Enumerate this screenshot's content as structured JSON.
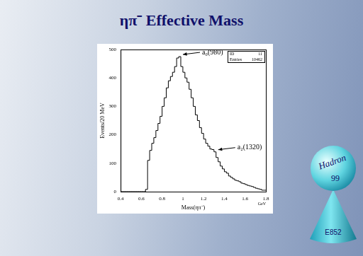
{
  "chart_data": {
    "type": "histogram",
    "title": "ηπ⁻ Effective Mass",
    "x_label": "Mass(ηπ⁻)",
    "x_unit": "GeV",
    "y_label": "Events/20 MeV",
    "bins": [
      0.4,
      0.42,
      0.44,
      0.46,
      0.48,
      0.5,
      0.52,
      0.54,
      0.56,
      0.58,
      0.6,
      0.62,
      0.64,
      0.66,
      0.68,
      0.7,
      0.72,
      0.74,
      0.76,
      0.78,
      0.8,
      0.82,
      0.84,
      0.86,
      0.88,
      0.9,
      0.92,
      0.94,
      0.96,
      0.98,
      1,
      1.02,
      1.04,
      1.06,
      1.08,
      1.1,
      1.12,
      1.14,
      1.16,
      1.18,
      1.2,
      1.22,
      1.24,
      1.26,
      1.28,
      1.3,
      1.32,
      1.34,
      1.36,
      1.38,
      1.4,
      1.42,
      1.44,
      1.46,
      1.48,
      1.5,
      1.52,
      1.54,
      1.56,
      1.58,
      1.6,
      1.62,
      1.64,
      1.66,
      1.68,
      1.7,
      1.72,
      1.74,
      1.76,
      1.78,
      1.8
    ],
    "values": [
      0,
      0,
      0,
      0,
      0,
      0,
      0,
      0,
      0,
      0,
      0,
      0,
      0,
      8,
      110,
      145,
      170,
      190,
      215,
      240,
      265,
      300,
      330,
      365,
      390,
      405,
      420,
      440,
      470,
      475,
      440,
      420,
      400,
      385,
      360,
      330,
      300,
      270,
      250,
      225,
      205,
      185,
      170,
      160,
      150,
      148,
      140,
      120,
      105,
      90,
      80,
      70,
      65,
      55,
      50,
      45,
      40,
      38,
      35,
      30,
      28,
      25,
      22,
      20,
      18,
      15,
      12,
      10,
      8,
      5
    ],
    "color": "#000000",
    "xlim": [
      0.4,
      1.8
    ],
    "xticks": [
      0.4,
      0.6,
      0.8,
      1,
      1.2,
      1.4,
      1.6,
      1.8
    ],
    "ylim": [
      0,
      500
    ],
    "yticks": [
      0,
      100,
      200,
      300,
      400,
      500
    ],
    "grid": false,
    "stats": [
      {
        "label": "ID",
        "value": 11
      },
      {
        "label": "Entries",
        "value": 10462
      }
    ],
    "annotations": [
      {
        "text": "a₀(980)",
        "x": 0.98,
        "y": 475
      },
      {
        "text": "a₂(1320)",
        "x": 1.32,
        "y": 140
      }
    ]
  },
  "logo": {
    "top": "Hadron",
    "middle": "99",
    "bottom": "E852"
  }
}
